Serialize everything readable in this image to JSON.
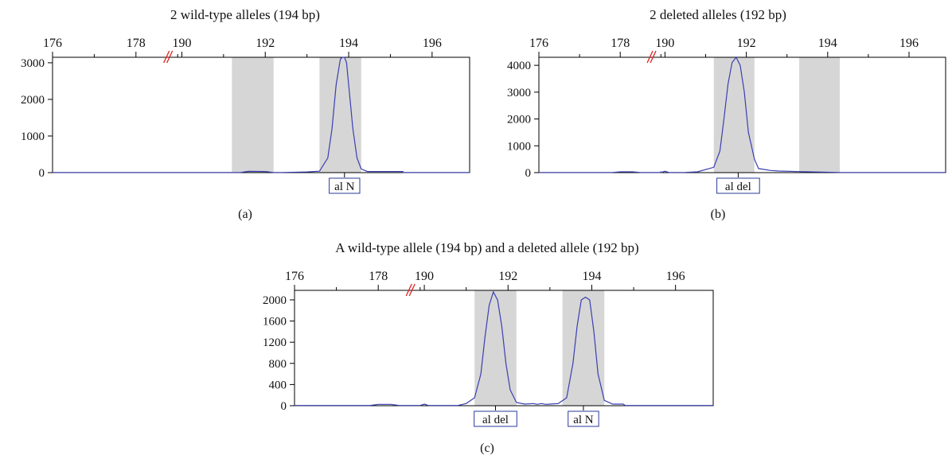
{
  "colors": {
    "trace": "#3a3fb0",
    "bin_shade": "#d6d6d6",
    "axis_break": "#e0201e",
    "label_box": "#2a3a9a",
    "axis": "#000000"
  },
  "chart_data": [
    {
      "panel_label": "(a)",
      "type": "line",
      "title": "2 wild-type alleles (194 bp)",
      "xlabel": "",
      "ylabel": "",
      "x_tick_labels": [
        "176",
        "178",
        "190",
        "192",
        "194",
        "196"
      ],
      "y_ticks": [
        0,
        1000,
        2000,
        3000
      ],
      "ylim": [
        0,
        3150
      ],
      "axis_break_between": [
        "178",
        "190"
      ],
      "shaded_bins": [
        {
          "from": 191.2,
          "to": 192.2
        },
        {
          "from": 193.3,
          "to": 194.3
        }
      ],
      "series": [
        {
          "x": [
            176,
            178,
            190,
            191.4,
            191.6,
            192.0,
            192.2,
            192.4,
            193.0,
            193.3,
            193.5,
            193.6,
            193.7,
            193.8,
            193.85,
            193.9,
            193.95,
            194.0,
            194.1,
            194.2,
            194.3,
            194.45,
            194.6,
            195.0,
            195.3,
            195.3,
            196.0,
            196.9
          ],
          "y": [
            5,
            5,
            5,
            5,
            35,
            30,
            5,
            5,
            20,
            40,
            400,
            1200,
            2400,
            3100,
            3150,
            3150,
            3000,
            2400,
            1200,
            400,
            100,
            30,
            30,
            30,
            30,
            5,
            5,
            5
          ]
        }
      ],
      "peak_labels": [
        {
          "text": "al N",
          "x": 193.9
        }
      ]
    },
    {
      "panel_label": "(b)",
      "type": "line",
      "title": "2 deleted alleles (192 bp)",
      "xlabel": "",
      "ylabel": "",
      "x_tick_labels": [
        "176",
        "178",
        "190",
        "192",
        "194",
        "196"
      ],
      "y_ticks": [
        0,
        1000,
        2000,
        3000,
        4000
      ],
      "ylim": [
        0,
        4300
      ],
      "axis_break_between": [
        "178",
        "190"
      ],
      "shaded_bins": [
        {
          "from": 191.2,
          "to": 192.2
        },
        {
          "from": 193.3,
          "to": 194.3
        }
      ],
      "series": [
        {
          "x": [
            176,
            177.8,
            178.0,
            178.3,
            178.5,
            179.0,
            179.05,
            179.1,
            179.9,
            190.0,
            190.1,
            190.5,
            190.8,
            191.2,
            191.35,
            191.45,
            191.55,
            191.65,
            191.75,
            191.85,
            191.95,
            192.05,
            192.2,
            192.3,
            192.6,
            192.8,
            193.3,
            194.3,
            196.9
          ],
          "y": [
            5,
            5,
            30,
            30,
            5,
            5,
            50,
            5,
            5,
            50,
            5,
            10,
            30,
            200,
            800,
            2000,
            3300,
            4100,
            4300,
            4000,
            3000,
            1500,
            500,
            150,
            80,
            60,
            40,
            5,
            5
          ]
        }
      ],
      "peak_labels": [
        {
          "text": "al del",
          "x": 191.8
        }
      ]
    },
    {
      "panel_label": "(c)",
      "type": "line",
      "title": "A wild-type allele (194 bp) and a deleted allele (192 bp)",
      "xlabel": "",
      "ylabel": "",
      "x_tick_labels": [
        "176",
        "178",
        "190",
        "192",
        "194",
        "196"
      ],
      "y_ticks": [
        0,
        400,
        800,
        1200,
        1600,
        2000
      ],
      "ylim": [
        0,
        2180
      ],
      "axis_break_between": [
        "178",
        "190"
      ],
      "shaded_bins": [
        {
          "from": 191.2,
          "to": 192.2
        },
        {
          "from": 193.3,
          "to": 194.3
        }
      ],
      "series": [
        {
          "x": [
            176,
            177.8,
            178.0,
            178.3,
            178.5,
            189.9,
            190.0,
            190.1,
            190.8,
            191.0,
            191.2,
            191.35,
            191.45,
            191.55,
            191.65,
            191.75,
            191.85,
            191.95,
            192.05,
            192.2,
            192.4,
            192.6,
            192.7,
            192.8,
            192.9,
            193.0,
            193.2,
            193.4,
            193.55,
            193.65,
            193.75,
            193.85,
            193.95,
            194.05,
            194.15,
            194.3,
            194.5,
            194.6,
            194.75,
            194.8,
            196.9
          ],
          "y": [
            5,
            5,
            25,
            25,
            5,
            5,
            30,
            5,
            5,
            40,
            150,
            600,
            1300,
            1900,
            2150,
            2000,
            1500,
            800,
            300,
            60,
            30,
            40,
            25,
            40,
            25,
            30,
            40,
            150,
            800,
            1500,
            2000,
            2050,
            2000,
            1400,
            600,
            100,
            30,
            30,
            30,
            5,
            5
          ]
        }
      ],
      "peak_labels": [
        {
          "text": "al del",
          "x": 191.7
        },
        {
          "text": "al N",
          "x": 193.8
        }
      ]
    }
  ]
}
